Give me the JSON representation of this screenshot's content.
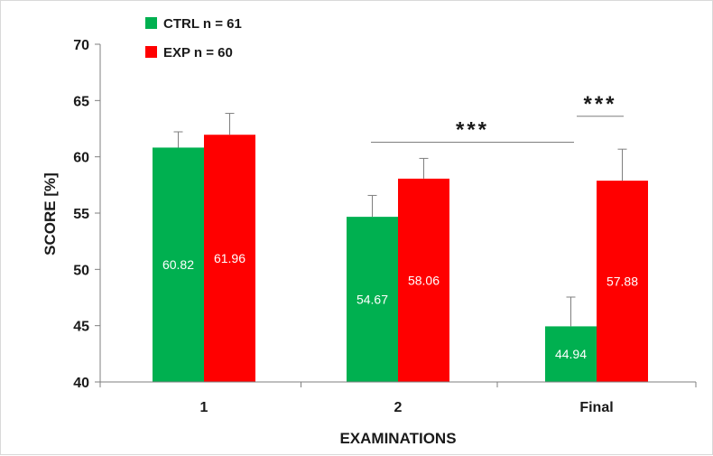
{
  "chart_data": {
    "type": "bar",
    "categories": [
      "1",
      "2",
      "Final"
    ],
    "series": [
      {
        "name": "CTRL n = 61",
        "color": "#00b050",
        "values": [
          60.82,
          54.67,
          44.94
        ],
        "errors": [
          1.4,
          1.9,
          2.6
        ]
      },
      {
        "name": "EXP n = 60",
        "color": "#ff0000",
        "values": [
          61.96,
          58.06,
          57.88
        ],
        "errors": [
          1.9,
          1.8,
          2.8
        ]
      }
    ],
    "data_labels": [
      [
        "60.82",
        "54.67",
        "44.94"
      ],
      [
        "61.96",
        "58.06",
        "57.88"
      ]
    ],
    "xlabel": "EXAMINATIONS",
    "ylabel": "SCORE [%]",
    "ylim": [
      40,
      70
    ],
    "yticks": [
      40,
      45,
      50,
      55,
      60,
      65,
      70
    ],
    "legend_position": "top-left",
    "grid": false,
    "annotations": [
      {
        "text": "***",
        "from_category": "2",
        "to_category": "Final",
        "y": 61.3
      },
      {
        "text": "***",
        "from_category": "Final",
        "to_category": "Final",
        "y": 63.6
      }
    ]
  }
}
